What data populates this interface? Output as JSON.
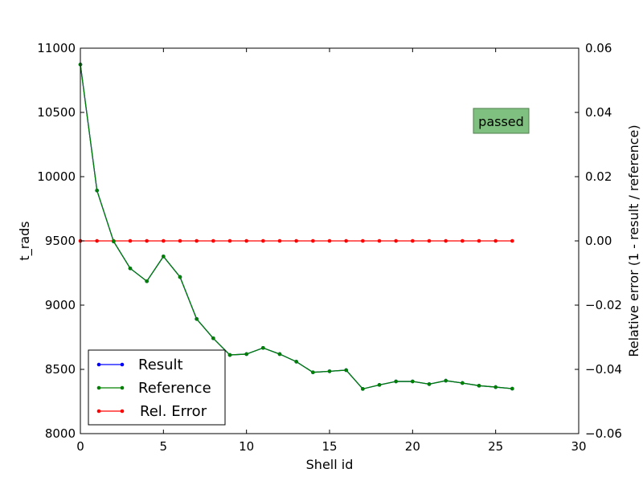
{
  "chart_data": {
    "type": "line",
    "xlabel": "Shell id",
    "ylabel": "t_rads",
    "y2label": "Relative error (1 - result / reference)",
    "xlim": [
      0,
      30
    ],
    "ylim": [
      8000,
      11000
    ],
    "y2lim": [
      -0.06,
      0.06
    ],
    "xticks": [
      "0",
      "5",
      "10",
      "15",
      "20",
      "25",
      "30"
    ],
    "yticks": [
      "8000",
      "8500",
      "9000",
      "9500",
      "10000",
      "10500",
      "11000"
    ],
    "y2ticks": [
      "−0.06",
      "−0.04",
      "−0.02",
      "0.00",
      "0.02",
      "0.04",
      "0.06"
    ],
    "grid": false,
    "legend_position": "lower-left",
    "x": [
      0,
      1,
      2,
      3,
      4,
      5,
      6,
      7,
      8,
      9,
      10,
      11,
      12,
      13,
      14,
      15,
      16,
      17,
      18,
      19,
      20,
      21,
      22,
      23,
      24,
      25,
      26
    ],
    "series": [
      {
        "name": "Result",
        "axis": "left",
        "color": "#0000ff",
        "values": [
          10873,
          9892,
          9496,
          9286,
          9186,
          9379,
          9219,
          8892,
          8742,
          8612,
          8619,
          8667,
          8619,
          8560,
          8477,
          8485,
          8494,
          8348,
          8379,
          8406,
          8406,
          8385,
          8412,
          8394,
          8373,
          8362,
          8350
        ]
      },
      {
        "name": "Reference",
        "axis": "left",
        "color": "#008000",
        "values": [
          10873,
          9892,
          9496,
          9286,
          9186,
          9379,
          9219,
          8892,
          8742,
          8612,
          8619,
          8667,
          8619,
          8560,
          8477,
          8485,
          8494,
          8348,
          8379,
          8406,
          8406,
          8385,
          8412,
          8394,
          8373,
          8362,
          8350
        ]
      },
      {
        "name": "Rel. Error",
        "axis": "right",
        "color": "#ff0000",
        "values": [
          0,
          0,
          0,
          0,
          0,
          0,
          0,
          0,
          0,
          0,
          0,
          0,
          0,
          0,
          0,
          0,
          0,
          0,
          0,
          0,
          0,
          0,
          0,
          0,
          0,
          0,
          0
        ]
      }
    ],
    "annotations": [
      {
        "text": "passed",
        "background": "#7fbf7f"
      }
    ]
  }
}
